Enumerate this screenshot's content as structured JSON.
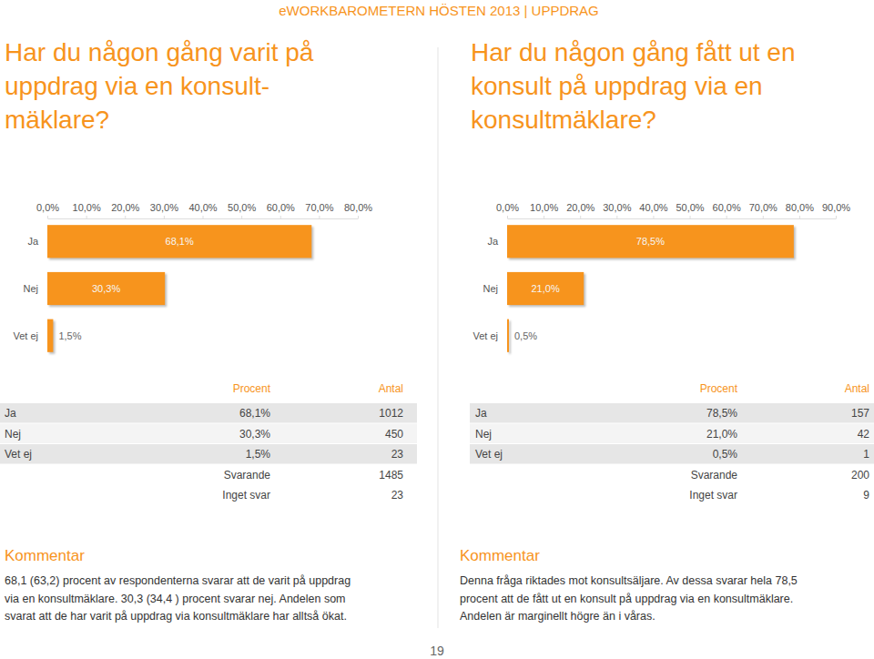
{
  "header": "eWORKBAROMETERN HÖSTEN 2013 | UPPDRAG",
  "chart_data": [
    {
      "type": "bar",
      "orientation": "horizontal",
      "title": [
        "Har du någon gång varit på",
        "uppdrag via en konsult-",
        "mäklare?"
      ],
      "categories": [
        "Ja",
        "Nej",
        "Vet ej"
      ],
      "values": [
        68.1,
        30.3,
        1.5
      ],
      "value_labels": [
        "68,1%",
        "30,3%",
        "1,5%"
      ],
      "color": "#f7941d",
      "xlim": [
        0,
        80
      ],
      "xticks": [
        {
          "value": 0,
          "label": "0,0%"
        },
        {
          "value": 10,
          "label": "10,0%"
        },
        {
          "value": 20,
          "label": "20,0%"
        },
        {
          "value": 30,
          "label": "30,0%"
        },
        {
          "value": 40,
          "label": "40,0%"
        },
        {
          "value": 50,
          "label": "50,0%"
        },
        {
          "value": 60,
          "label": "60,0%"
        },
        {
          "value": 70,
          "label": "70,0%"
        },
        {
          "value": 80,
          "label": "80,0%"
        }
      ],
      "data_labels": true,
      "grid": false
    },
    {
      "type": "bar",
      "orientation": "horizontal",
      "title": [
        "Har du någon gång fått ut en",
        "konsult på uppdrag via en",
        "konsultmäklare?"
      ],
      "categories": [
        "Ja",
        "Nej",
        "Vet ej"
      ],
      "values": [
        78.5,
        21.0,
        0.5
      ],
      "value_labels": [
        "78,5%",
        "21,0%",
        "0,5%"
      ],
      "color": "#f7941d",
      "xlim": [
        0,
        90
      ],
      "xticks": [
        {
          "value": 0,
          "label": "0,0%"
        },
        {
          "value": 10,
          "label": "10,0%"
        },
        {
          "value": 20,
          "label": "20,0%"
        },
        {
          "value": 30,
          "label": "30,0%"
        },
        {
          "value": 40,
          "label": "40,0%"
        },
        {
          "value": 50,
          "label": "50,0%"
        },
        {
          "value": 60,
          "label": "60,0%"
        },
        {
          "value": 70,
          "label": "70,0%"
        },
        {
          "value": 80,
          "label": "80,0%"
        },
        {
          "value": 90,
          "label": "90,0%"
        }
      ],
      "data_labels": true,
      "grid": false
    }
  ],
  "tables": [
    {
      "columns": [
        "Procent",
        "Antal"
      ],
      "rows": [
        [
          "Ja",
          "68,1%",
          1012
        ],
        [
          "Nej",
          "30,3%",
          450
        ],
        [
          "Vet ej",
          "1,5%",
          23
        ]
      ],
      "totals": [
        [
          "Svarande",
          1485
        ],
        [
          "Inget svar",
          23
        ]
      ]
    },
    {
      "columns": [
        "Procent",
        "Antal"
      ],
      "rows": [
        [
          "Ja",
          "78,5%",
          157
        ],
        [
          "Nej",
          "21,0%",
          42
        ],
        [
          "Vet ej",
          "0,5%",
          1
        ]
      ],
      "totals": [
        [
          "Svarande",
          200
        ],
        [
          "Inget svar",
          9
        ]
      ]
    }
  ],
  "comments": [
    {
      "heading": "Kommentar",
      "lines": [
        "68,1 (63,2) procent av respondenterna svarar att de varit på uppdrag",
        "via en konsultmäklare. 30,3 (34,4 ) procent svarar nej. Andelen som",
        "svarat att de har varit på uppdrag via konsultmäklare har alltså ökat."
      ]
    },
    {
      "heading": "Kommentar",
      "lines": [
        "Denna fråga riktades mot konsultsäljare. Av dessa svarar hela 78,5",
        "procent att de fått ut en konsult på uppdrag via en konsultmäklare.",
        "Andelen är marginellt högre än i våras."
      ]
    }
  ],
  "page_number": 19
}
